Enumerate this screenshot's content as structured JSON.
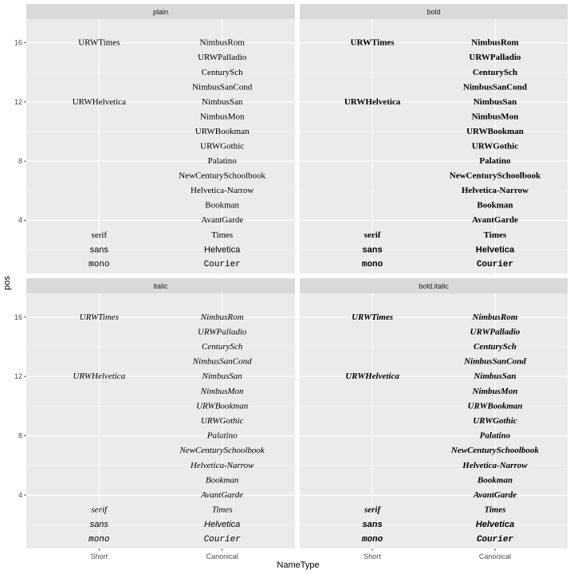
{
  "chart_data": {
    "type": "text-scatter",
    "xlabel": "NameType",
    "ylabel": "pos",
    "x_categories": [
      "Short",
      "Canonical"
    ],
    "y_ticks": [
      4,
      8,
      12,
      16
    ],
    "ylim": [
      0.4,
      17.6
    ],
    "grid": true,
    "panels": [
      {
        "name": "plain",
        "fontface": "plain"
      },
      {
        "name": "bold",
        "fontface": "bold"
      },
      {
        "name": "italic",
        "fontface": "italic"
      },
      {
        "name": "bold.italic",
        "fontface": "bold.italic"
      }
    ],
    "points": [
      {
        "x": "Short",
        "pos": 16,
        "label": "URWTimes",
        "family": "serif"
      },
      {
        "x": "Short",
        "pos": 12,
        "label": "URWHelvetica",
        "family": "serif"
      },
      {
        "x": "Short",
        "pos": 3,
        "label": "serif",
        "family": "serif"
      },
      {
        "x": "Short",
        "pos": 2,
        "label": "sans",
        "family": "sans"
      },
      {
        "x": "Short",
        "pos": 1,
        "label": "mono",
        "family": "mono"
      },
      {
        "x": "Canonical",
        "pos": 16,
        "label": "NimbusRom",
        "family": "serif"
      },
      {
        "x": "Canonical",
        "pos": 15,
        "label": "URWPalladio",
        "family": "serif"
      },
      {
        "x": "Canonical",
        "pos": 14,
        "label": "CenturySch",
        "family": "serif"
      },
      {
        "x": "Canonical",
        "pos": 13,
        "label": "NimbusSanCond",
        "family": "serif"
      },
      {
        "x": "Canonical",
        "pos": 12,
        "label": "NimbusSan",
        "family": "serif"
      },
      {
        "x": "Canonical",
        "pos": 11,
        "label": "NimbusMon",
        "family": "serif"
      },
      {
        "x": "Canonical",
        "pos": 10,
        "label": "URWBookman",
        "family": "serif"
      },
      {
        "x": "Canonical",
        "pos": 9,
        "label": "URWGothic",
        "family": "serif"
      },
      {
        "x": "Canonical",
        "pos": 8,
        "label": "Palatino",
        "family": "serif"
      },
      {
        "x": "Canonical",
        "pos": 7,
        "label": "NewCenturySchoolbook",
        "family": "serif"
      },
      {
        "x": "Canonical",
        "pos": 6,
        "label": "Helvetica-Narrow",
        "family": "serif"
      },
      {
        "x": "Canonical",
        "pos": 5,
        "label": "Bookman",
        "family": "serif"
      },
      {
        "x": "Canonical",
        "pos": 4,
        "label": "AvantGarde",
        "family": "serif"
      },
      {
        "x": "Canonical",
        "pos": 3,
        "label": "Times",
        "family": "serif"
      },
      {
        "x": "Canonical",
        "pos": 2,
        "label": "Helvetica",
        "family": "sans"
      },
      {
        "x": "Canonical",
        "pos": 1,
        "label": "Courier",
        "family": "mono"
      }
    ],
    "colors": {
      "panel_background": "#ebebeb",
      "strip_background": "#d9d9d9",
      "grid_major": "#ffffff",
      "grid_minor": "#f5f5f5",
      "text": "#000000"
    }
  }
}
